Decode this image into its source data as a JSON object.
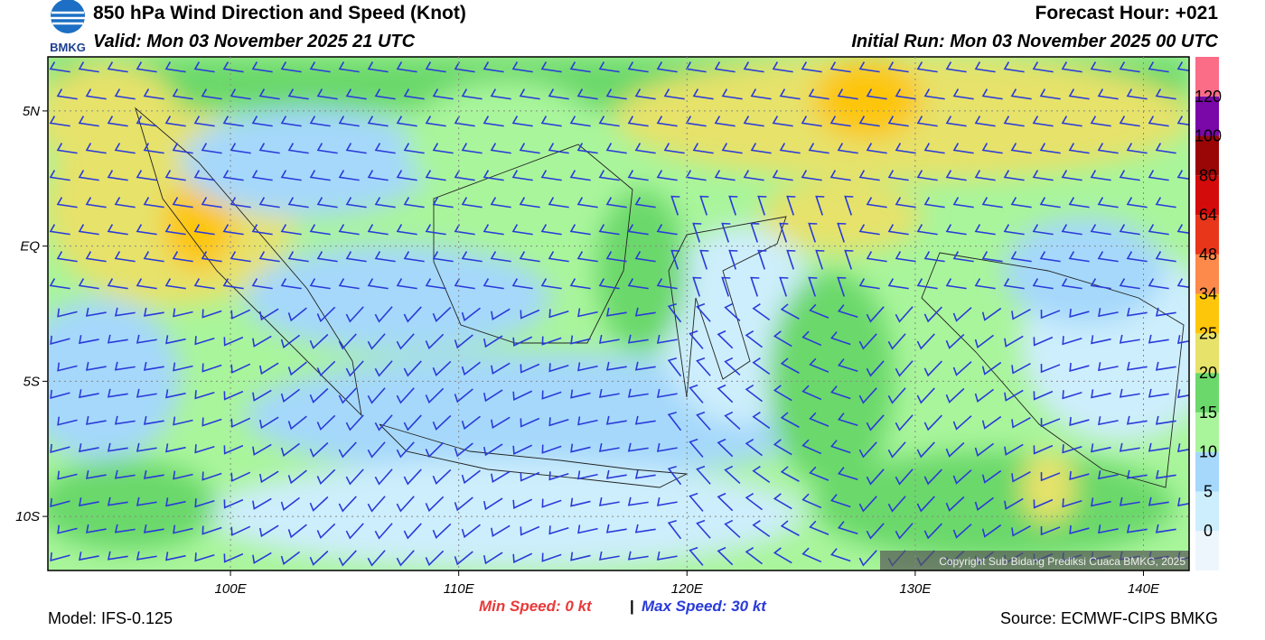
{
  "header": {
    "logo_text": "BMKG",
    "title": "850 hPa Wind Direction and Speed (Knot)",
    "valid": "Valid: Mon 03 November 2025 21 UTC",
    "forecast_hour": "Forecast Hour: +021",
    "initial_run": "Initial Run: Mon 03 November 2025 00 UTC"
  },
  "map": {
    "lon_range": [
      92,
      142
    ],
    "lat_range": [
      -12,
      7
    ],
    "lat_ticks": [
      {
        "value": 5,
        "label": "5N"
      },
      {
        "value": 0,
        "label": "EQ"
      },
      {
        "value": -5,
        "label": "5S"
      },
      {
        "value": -10,
        "label": "10S"
      }
    ],
    "lon_ticks": [
      {
        "value": 100,
        "label": "100E"
      },
      {
        "value": 110,
        "label": "110E"
      },
      {
        "value": 120,
        "label": "120E"
      },
      {
        "value": 130,
        "label": "130E"
      },
      {
        "value": 140,
        "label": "140E"
      }
    ],
    "copyright": "Copyright Sub Bidang Prediksi Cuaca BMKG, 2025"
  },
  "colorbar": {
    "labels": [
      0,
      5,
      10,
      15,
      20,
      25,
      34,
      48,
      64,
      80,
      100,
      120
    ],
    "colors": [
      "#eef6fd",
      "#cdeefc",
      "#a5d8fb",
      "#a9f59b",
      "#6bd86b",
      "#e6e26a",
      "#fdc60a",
      "#fd8a4a",
      "#e8361a",
      "#d40b0b",
      "#9a0606",
      "#7a07a8",
      "#fb6c86"
    ]
  },
  "footer": {
    "model": "Model: IFS-0.125",
    "min_speed": "Min Speed:  0 kt",
    "max_speed": "Max Speed:  30 kt",
    "source": "Source: ECMWF-CIPS BMKG"
  }
}
